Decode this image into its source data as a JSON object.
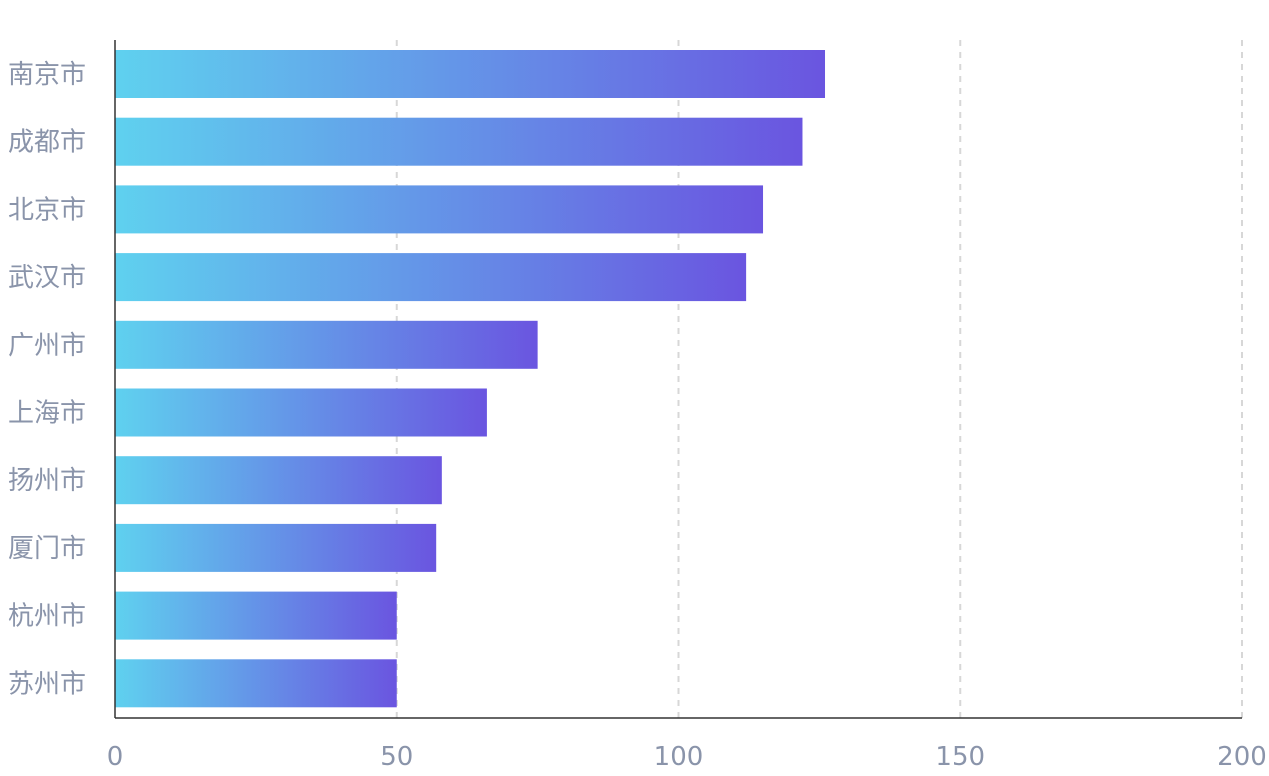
{
  "chart_data": {
    "type": "bar",
    "orientation": "horizontal",
    "categories": [
      "南京市",
      "成都市",
      "北京市",
      "武汉市",
      "广州市",
      "上海市",
      "扬州市",
      "厦门市",
      "杭州市",
      "苏州市"
    ],
    "values": [
      126,
      122,
      115,
      112,
      75,
      66,
      58,
      57,
      50,
      50
    ],
    "x_ticks": [
      "0",
      "50",
      "100",
      "150",
      "200"
    ],
    "xlim": [
      0,
      200
    ],
    "title": "",
    "xlabel": "",
    "ylabel": "",
    "grid": "vertical dashed",
    "legend": "none",
    "colors": {
      "bar_gradient_start": "#5fd1ef",
      "bar_gradient_end": "#6a55e0",
      "grid": "#d7d7d7",
      "axis": "#333333",
      "label": "#8a94aa"
    }
  }
}
